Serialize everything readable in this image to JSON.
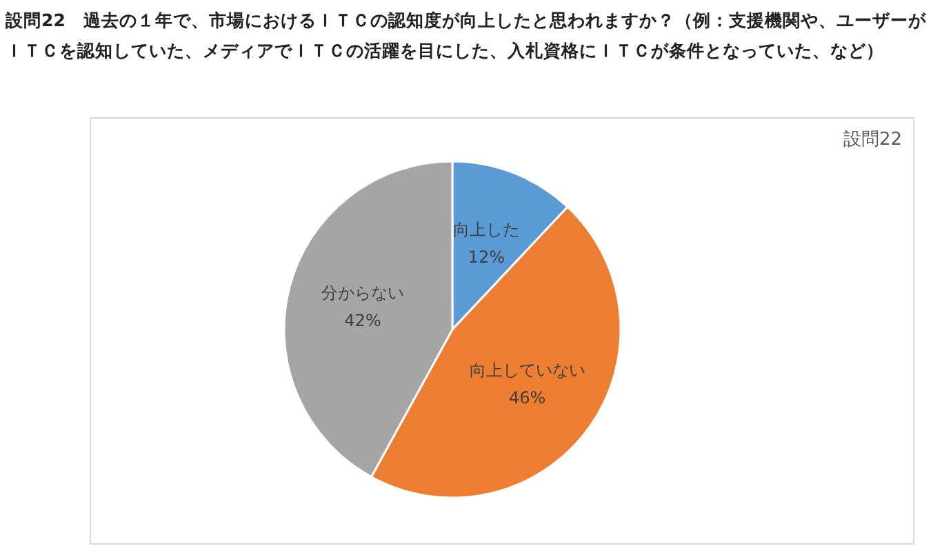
{
  "chart_data": {
    "type": "pie",
    "title": "設問22　過去の１年で、市場におけるＩＴＣの認知度が向上したと思われますか？（例：支援機関や、ユーザーがＩＴＣを認知していた、メディアでＩＴＣの活躍を目にした、入札資格にＩＴＣが条件となっていた、など）",
    "subtitle": "設問22",
    "categories": [
      "向上した",
      "向上していない",
      "分からない"
    ],
    "values": [
      12,
      46,
      42
    ],
    "colors": [
      "#5b9bd5",
      "#ed7d31",
      "#a5a5a5"
    ],
    "value_labels": [
      "12%",
      "46%",
      "42%"
    ]
  }
}
